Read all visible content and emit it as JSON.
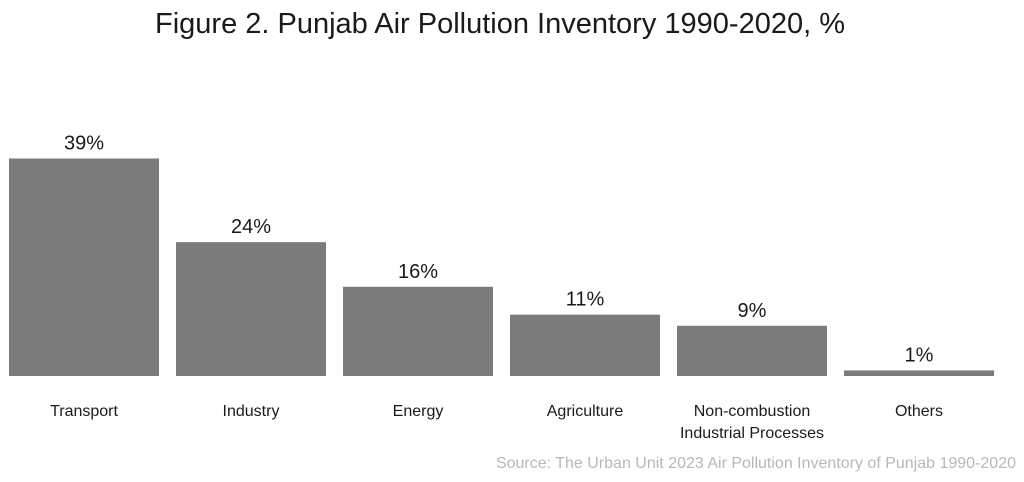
{
  "chart_data": {
    "type": "bar",
    "title": "Figure 2. Punjab Air Pollution Inventory 1990-2020, %",
    "categories": [
      [
        "Transport"
      ],
      [
        "Industry"
      ],
      [
        "Energy"
      ],
      [
        "Agriculture"
      ],
      [
        "Non-combustion",
        "Industrial Processes"
      ],
      [
        "Others"
      ]
    ],
    "values": [
      39,
      24,
      16,
      11,
      9,
      1
    ],
    "value_labels": [
      "39%",
      "24%",
      "16%",
      "11%",
      "9%",
      "1%"
    ],
    "ylim": [
      0,
      40
    ],
    "grid": false,
    "legend": "none",
    "bar_color": "#7b7b7b",
    "source": "Source: The Urban Unit 2023 Air Pollution Inventory of Punjab 1990-2020"
  }
}
